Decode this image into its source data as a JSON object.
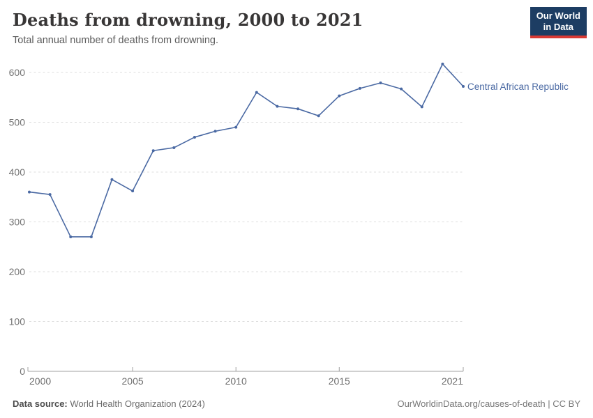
{
  "header": {
    "title": "Deaths from drowning, 2000 to 2021",
    "subtitle": "Total annual number of deaths from drowning.",
    "logo": {
      "line1": "Our World",
      "line2": "in Data"
    }
  },
  "chart_data": {
    "type": "line",
    "title": "Deaths from drowning, 2000 to 2021",
    "xlabel": "",
    "ylabel": "",
    "xlim": [
      2000,
      2021
    ],
    "ylim": [
      0,
      600
    ],
    "grid": "horizontal-dashed",
    "x": [
      2000,
      2001,
      2002,
      2003,
      2004,
      2005,
      2006,
      2007,
      2008,
      2009,
      2010,
      2011,
      2012,
      2013,
      2014,
      2015,
      2016,
      2017,
      2018,
      2019,
      2020,
      2021
    ],
    "series": [
      {
        "name": "Central African Republic",
        "color": "#4a69a3",
        "values": [
          360,
          355,
          270,
          270,
          385,
          362,
          443,
          449,
          470,
          482,
          490,
          560,
          532,
          527,
          513,
          553,
          568,
          579,
          567,
          531,
          617,
          572
        ]
      }
    ],
    "y_ticks": [
      "0",
      "100",
      "200",
      "300",
      "400",
      "500",
      "600"
    ],
    "x_ticks": [
      "2000",
      "2005",
      "2010",
      "2015",
      "2021"
    ],
    "entity_label": "Central African Republic"
  },
  "footer": {
    "source_label": "Data source:",
    "source_value": "World Health Organization (2024)",
    "attribution": "OurWorldinData.org/causes-of-death | CC BY"
  },
  "colors": {
    "line": "#4a69a3",
    "logo_bg": "#1d3d63",
    "logo_accent": "#d93a34",
    "grid": "#dedede",
    "axis": "#a0a0a0"
  }
}
